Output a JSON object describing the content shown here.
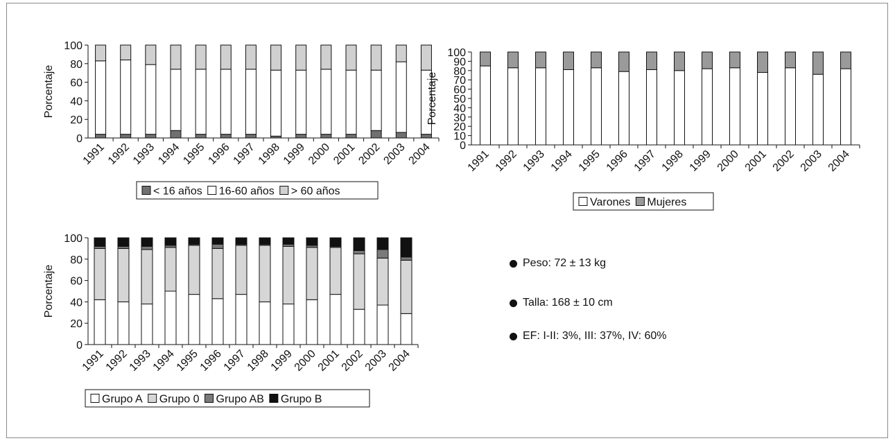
{
  "colors": {
    "lt16": "#707070",
    "white": "#ffffff",
    "gt60": "#d0d0d0",
    "mujeres": "#9a9a9a",
    "grupo0": "#d6d6d6",
    "grupoAB": "#7a7a7a",
    "grupoB": "#111111"
  },
  "chart_data": [
    {
      "type": "bar",
      "stacked": true,
      "categories": [
        "1991",
        "1992",
        "1993",
        "1994",
        "1995",
        "1996",
        "1997",
        "1998",
        "1999",
        "2000",
        "2001",
        "2002",
        "2003",
        "2004"
      ],
      "ylabel": "Porcentaje",
      "ylim": [
        0,
        100
      ],
      "yticks": [
        "0",
        "20",
        "40",
        "60",
        "80",
        "100"
      ],
      "legend_position": "bottom",
      "series": [
        {
          "name": "< 16 años",
          "color_key": "lt16",
          "values": [
            4,
            4,
            4,
            8,
            4,
            4,
            4,
            2,
            4,
            4,
            4,
            8,
            6,
            4
          ]
        },
        {
          "name": "16-60 años",
          "color_key": "white",
          "values": [
            79,
            80,
            75,
            66,
            70,
            70,
            70,
            71,
            69,
            70,
            69,
            65,
            76,
            69
          ]
        },
        {
          "name": "> 60 años",
          "color_key": "gt60",
          "values": [
            17,
            16,
            21,
            26,
            26,
            26,
            26,
            27,
            27,
            26,
            27,
            27,
            18,
            27
          ]
        }
      ]
    },
    {
      "type": "bar",
      "stacked": true,
      "categories": [
        "1991",
        "1992",
        "1993",
        "1994",
        "1995",
        "1996",
        "1997",
        "1998",
        "1999",
        "2000",
        "2001",
        "2002",
        "2003",
        "2004"
      ],
      "ylabel": "Porcentaje",
      "ylim": [
        0,
        100
      ],
      "yticks": [
        "0",
        "10",
        "20",
        "30",
        "40",
        "50",
        "60",
        "70",
        "80",
        "90",
        "100"
      ],
      "legend_position": "bottom",
      "series": [
        {
          "name": "Varones",
          "color_key": "white",
          "values": [
            85,
            83,
            83,
            81,
            83,
            79,
            81,
            80,
            82,
            83,
            78,
            83,
            76,
            82
          ]
        },
        {
          "name": "Mujeres",
          "color_key": "mujeres",
          "values": [
            15,
            17,
            17,
            19,
            17,
            21,
            19,
            20,
            18,
            17,
            22,
            17,
            24,
            18
          ]
        }
      ]
    },
    {
      "type": "bar",
      "stacked": true,
      "categories": [
        "1991",
        "1992",
        "1993",
        "1994",
        "1995",
        "1996",
        "1997",
        "1998",
        "1999",
        "2000",
        "2001",
        "2002",
        "2003",
        "2004"
      ],
      "ylabel": "Porcentaje",
      "ylim": [
        0,
        100
      ],
      "yticks": [
        "0",
        "20",
        "40",
        "60",
        "80",
        "100"
      ],
      "legend_position": "bottom",
      "series": [
        {
          "name": "Grupo A",
          "color_key": "white",
          "values": [
            42,
            40,
            38,
            50,
            47,
            43,
            47,
            40,
            38,
            42,
            47,
            33,
            37,
            29
          ]
        },
        {
          "name": "Grupo 0",
          "color_key": "grupo0",
          "values": [
            48,
            50,
            51,
            41,
            46,
            47,
            46,
            53,
            54,
            49,
            44,
            52,
            44,
            50
          ]
        },
        {
          "name": "Grupo AB",
          "color_key": "grupoAB",
          "values": [
            2,
            2,
            3,
            2,
            1,
            4,
            1,
            1,
            2,
            2,
            1,
            3,
            8,
            3
          ]
        },
        {
          "name": "Grupo B",
          "color_key": "grupoB",
          "values": [
            8,
            8,
            8,
            7,
            6,
            6,
            6,
            6,
            6,
            7,
            8,
            12,
            11,
            18
          ]
        }
      ]
    }
  ],
  "stats": [
    {
      "text": "Peso: 72 ± 13 kg"
    },
    {
      "text": "Talla: 168 ± 10 cm"
    },
    {
      "text": "EF: I-II: 3%, III: 37%, IV: 60%"
    }
  ]
}
